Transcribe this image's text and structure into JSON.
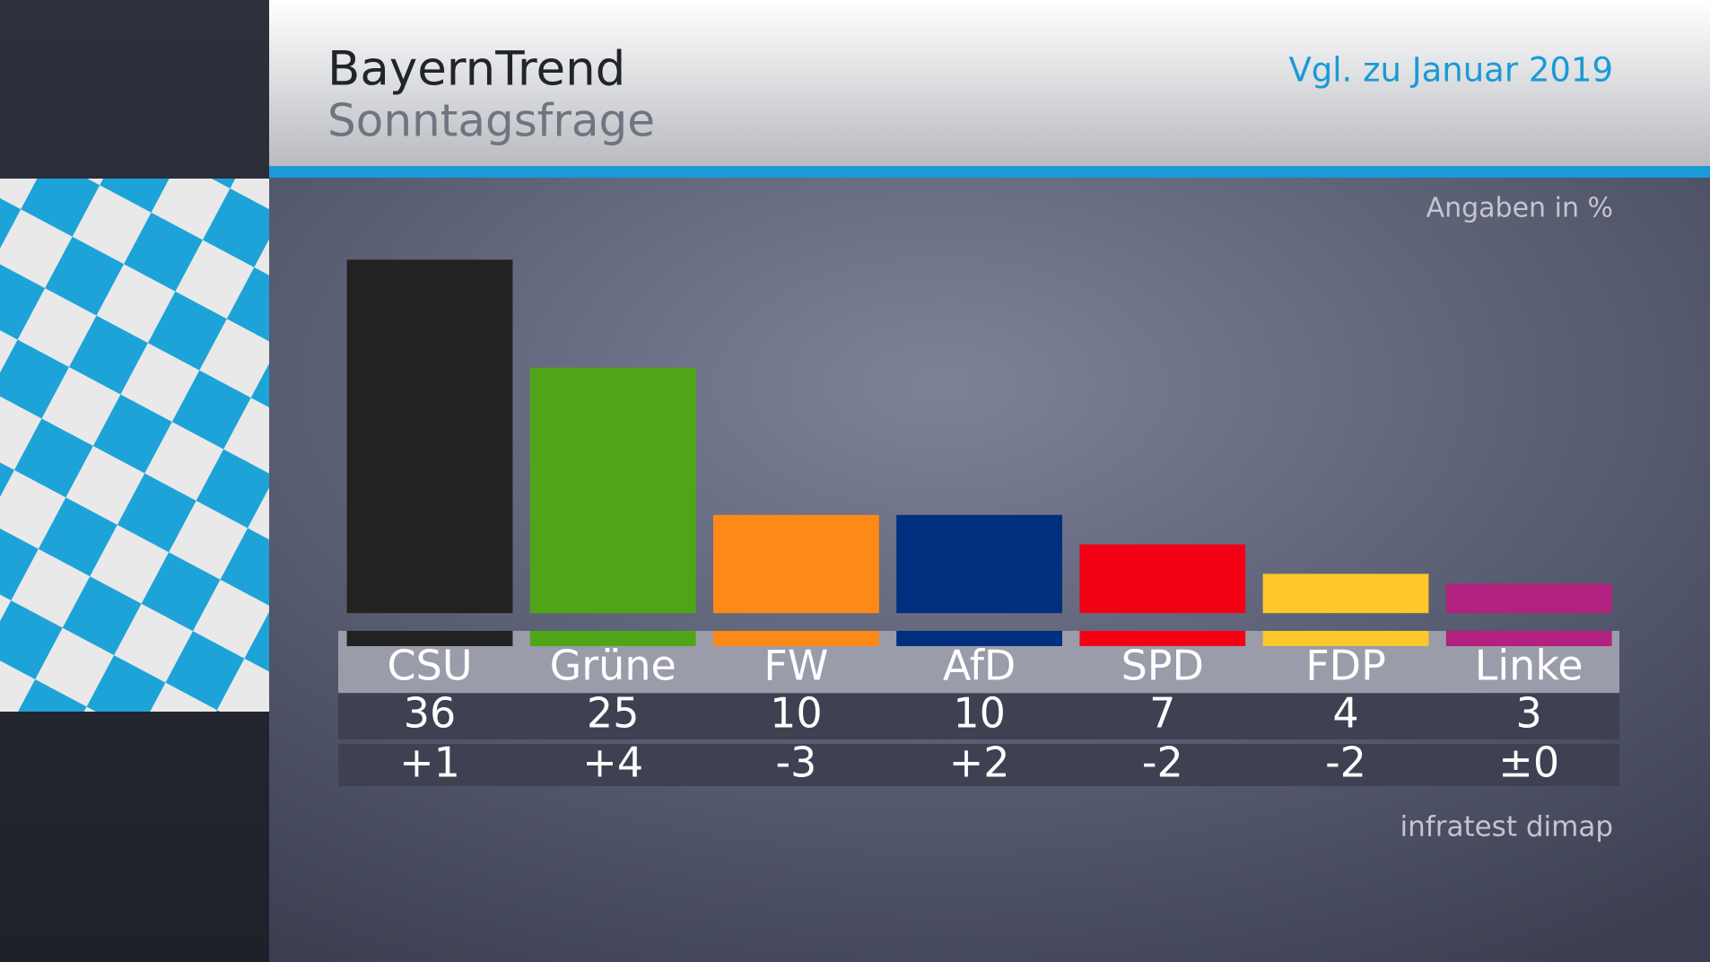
{
  "chart_data": {
    "type": "bar",
    "title": "BayernTrend",
    "subtitle": "Sonntagsfrage",
    "comparison": "Vgl. zu Januar 2019",
    "unit_note": "Angaben in %",
    "source": "infratest dimap",
    "categories": [
      "CSU",
      "Grüne",
      "FW",
      "AfD",
      "SPD",
      "FDP",
      "Linke"
    ],
    "values": [
      36,
      25,
      10,
      10,
      7,
      4,
      3
    ],
    "colors": [
      "#222222",
      "#50a516",
      "#fd8a16",
      "#012f7f",
      "#f40015",
      "#fec72b",
      "#b2217e"
    ],
    "changes": [
      1,
      4,
      -3,
      2,
      -2,
      -2,
      0
    ],
    "change_labels": [
      "+1",
      "+4",
      "-3",
      "+2",
      "-2",
      "-2",
      "±0"
    ]
  }
}
